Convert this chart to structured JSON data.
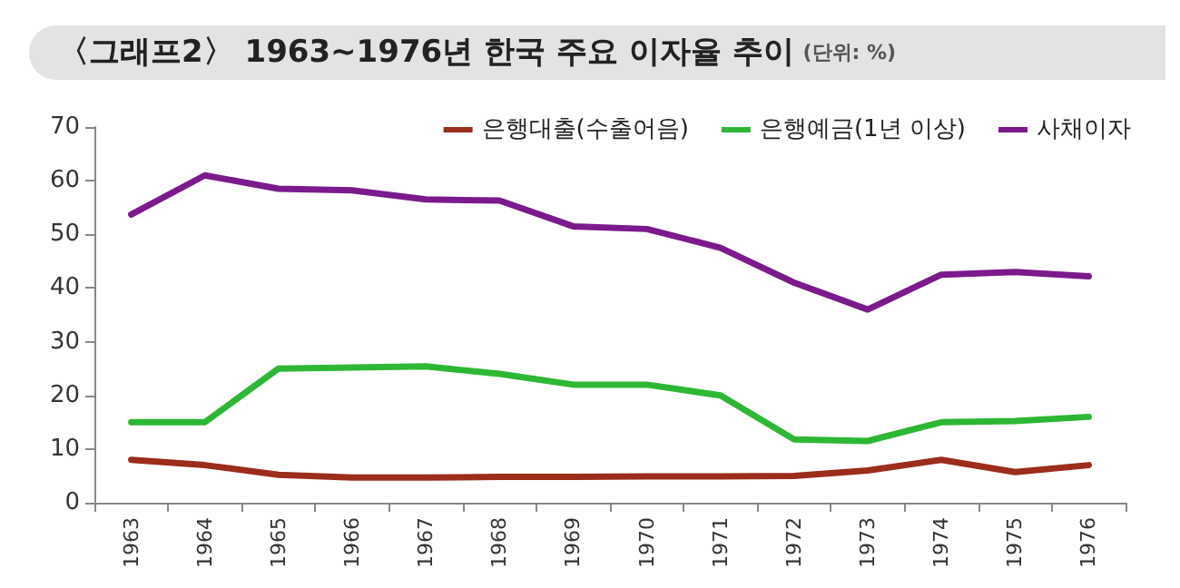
{
  "chart_data": {
    "type": "line",
    "title": "〈그래프2〉 1963~1976년 한국 주요 이자율 추이",
    "subtitle": "(단위: %)",
    "categories": [
      "1963",
      "1964",
      "1965",
      "1966",
      "1967",
      "1968",
      "1969",
      "1970",
      "1971",
      "1972",
      "1973",
      "1974",
      "1975",
      "1976"
    ],
    "series": [
      {
        "name": "은행대출(수출어음)",
        "color": "#9b2d1a",
        "values": [
          8,
          7,
          5.2,
          4.7,
          4.7,
          4.8,
          4.8,
          4.9,
          4.9,
          5,
          6,
          8,
          5.7,
          7
        ]
      },
      {
        "name": "은행예금(1년 이상)",
        "color": "#2db734",
        "values": [
          15,
          15,
          25,
          25.2,
          25.4,
          24,
          22,
          22,
          20,
          11.8,
          11.5,
          15,
          15.2,
          16
        ]
      },
      {
        "name": "사채이자",
        "color": "#7b1a8c",
        "values": [
          53.7,
          61,
          58.5,
          58.2,
          56.5,
          56.3,
          51.5,
          51,
          47.5,
          41,
          36,
          42.5,
          43,
          42.2
        ]
      }
    ],
    "ylim": [
      0,
      70
    ],
    "yticks": [
      0,
      10,
      20,
      30,
      40,
      50,
      60,
      70
    ],
    "grid": false,
    "legend": "top right",
    "marker": "none",
    "line_style": "solid"
  }
}
